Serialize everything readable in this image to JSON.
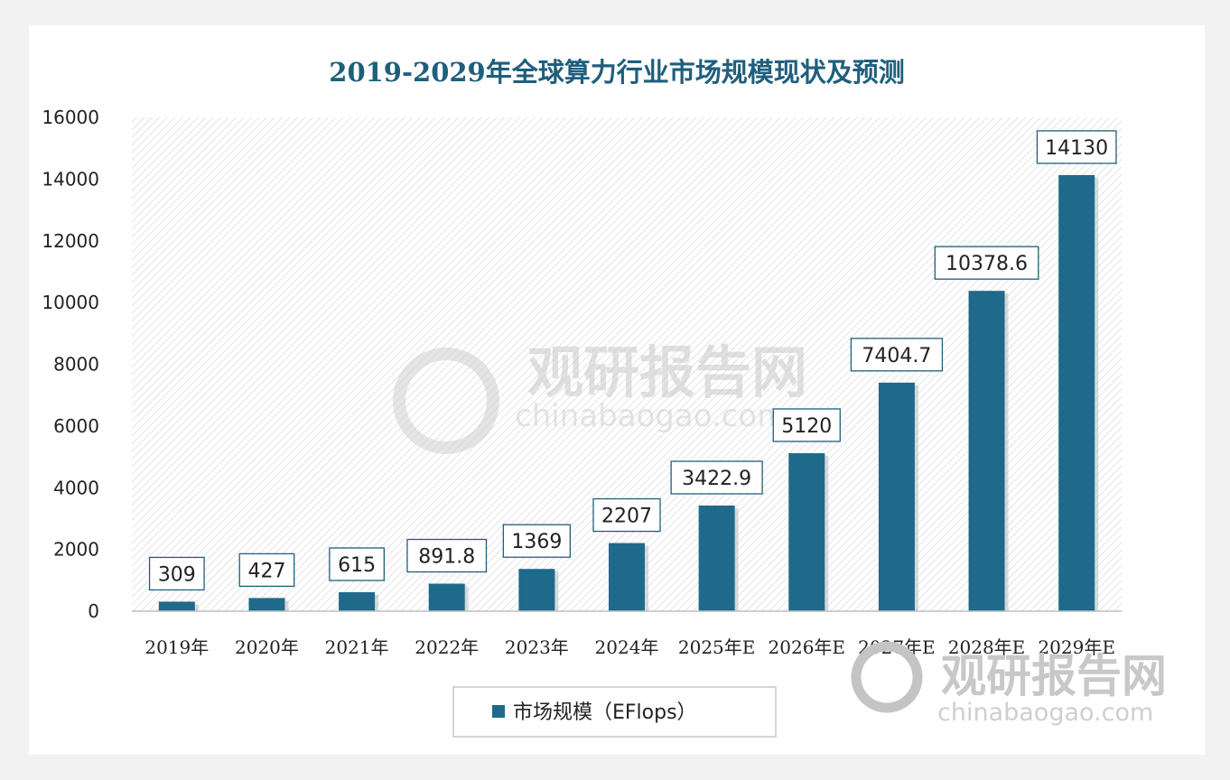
{
  "chart_data": {
    "type": "bar",
    "title": "2019-2029年全球算力行业市场规模现状及预测",
    "categories": [
      "2019年",
      "2020年",
      "2021年",
      "2022年",
      "2023年",
      "2024年",
      "2025年E",
      "2026年E",
      "2027年E",
      "2028年E",
      "2029年E"
    ],
    "series": [
      {
        "name": "市场规模（EFlops）",
        "values": [
          309,
          427,
          615,
          891.8,
          1369,
          2207,
          3422.9,
          5120,
          7404.7,
          10378.6,
          14130
        ],
        "labels": [
          "309",
          "427",
          "615",
          "891.8",
          "1369",
          "2207",
          "3422.9",
          "5120",
          "7404.7",
          "10378.6",
          "14130"
        ]
      }
    ],
    "ylim": [
      0,
      16000
    ],
    "yticks": [
      0,
      2000,
      4000,
      6000,
      8000,
      10000,
      12000,
      14000,
      16000
    ],
    "legend": "bottom-center",
    "bar_color": "#1f6a8a"
  },
  "watermark": {
    "brand": "观研报告网",
    "site": "chinabaogao.com"
  }
}
